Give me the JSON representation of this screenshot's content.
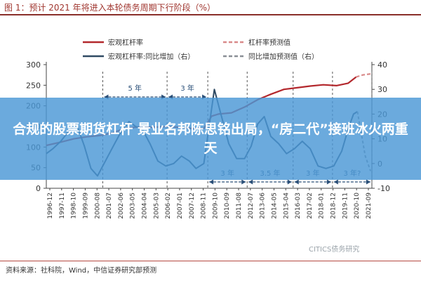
{
  "figure": {
    "title": "图 1：预计 2021 年将进入本轮债务周期下行阶段（%）",
    "source": "资料来源：社科院，Wind，中信证券研究部预测",
    "watermark": "CITICS债务研究"
  },
  "banner": {
    "headline": "合规的股票期货杠杆 景业名邦陈思铭出局，“房二代”接班冰火两重天"
  },
  "colors": {
    "leverage": "#b3282d",
    "yoy": "#2f4a63",
    "title": "#a0362f",
    "banner": "#4a97d6",
    "annotation": "#2a4f78"
  },
  "chart_data": {
    "type": "line",
    "x_ticks": [
      "1996-12",
      "1997-11",
      "1998-10",
      "1999-09",
      "2000-08",
      "2001-07",
      "2002-06",
      "2003-05",
      "2004-04",
      "2005-03",
      "2006-02",
      "2007-01",
      "2007-12",
      "2008-11",
      "2009-10",
      "2010-09",
      "2011-08",
      "2012-07",
      "2013-06",
      "2014-05",
      "2015-04",
      "2016-03",
      "2017-02",
      "2018-01",
      "2018-12",
      "2019-11",
      "2020-10",
      "2021-09"
    ],
    "y_left": {
      "ticks": [
        "300",
        "250",
        "200",
        "150",
        "100",
        "50",
        "0"
      ],
      "range": [
        0,
        300
      ]
    },
    "y_right": {
      "ticks": [
        "40",
        "30",
        "20",
        "10",
        "0",
        "-10"
      ],
      "range": [
        -10,
        40
      ]
    },
    "legend": [
      {
        "key": "leverage",
        "label": "宏观杠杆率",
        "style": "solid",
        "color": "#b3282d"
      },
      {
        "key": "leverage_forecast",
        "label": "杠杆率预测值",
        "style": "dashed",
        "color": "#d98a8a"
      },
      {
        "key": "yoy",
        "label": "宏观杠杆率:同比增加（右）",
        "style": "solid",
        "color": "#2f4a63"
      },
      {
        "key": "yoy_forecast",
        "label": "同比增加预测值（右）",
        "style": "dashed",
        "color": "#8a8f96"
      }
    ],
    "series": [
      {
        "name": "宏观杠杆率",
        "axis": "left",
        "x": [
          1996.9,
          1998,
          1999,
          2000,
          2001,
          2002,
          2003,
          2004,
          2005,
          2006,
          2007,
          2008,
          2008.9,
          2009.5,
          2010,
          2011,
          2012,
          2013,
          2014,
          2015,
          2016,
          2017,
          2018,
          2019,
          2019.9,
          2020.5
        ],
        "y": [
          104,
          112,
          120,
          125,
          128,
          135,
          146,
          149,
          148,
          150,
          148,
          145,
          145,
          175,
          180,
          183,
          197,
          215,
          228,
          240,
          244,
          248,
          251,
          249,
          255,
          270
        ]
      },
      {
        "name": "杠杆率预测值",
        "axis": "left",
        "x": [
          2020.5,
          2021,
          2021.7
        ],
        "y": [
          270,
          275,
          278
        ]
      },
      {
        "name": "宏观杠杆率:同比增加",
        "axis": "right",
        "x": [
          1996.9,
          1997.4,
          1998,
          1998.6,
          1999.2,
          1999.8,
          2000.3,
          2000.8,
          2001.3,
          2001.9,
          2002.5,
          2003.2,
          2003.7,
          2004.2,
          2004.8,
          2005.4,
          2006,
          2006.6,
          2007.2,
          2007.8,
          2008.3,
          2008.9,
          2009.3,
          2009.7,
          2010.2,
          2010.8,
          2011.4,
          2012,
          2012.5,
          2013,
          2013.5,
          2014,
          2014.6,
          2015.2,
          2015.8,
          2016.4,
          2017,
          2017.6,
          2018.2,
          2018.8,
          2019.4,
          2019.9,
          2020.3,
          2020.6
        ],
        "y": [
          4,
          6,
          9,
          13,
          16,
          7,
          -2,
          -5,
          0,
          6,
          12,
          17,
          15,
          14,
          8,
          1,
          -1,
          0,
          3,
          1,
          -2,
          0,
          15,
          30,
          20,
          8,
          2,
          2,
          7,
          16,
          19,
          11,
          8,
          4,
          6,
          9,
          6,
          -1,
          -2,
          -1,
          5,
          14,
          20,
          21
        ]
      },
      {
        "name": "同比增加预测值",
        "axis": "right",
        "x": [
          2020.6,
          2020.9,
          2021.2,
          2021.6
        ],
        "y": [
          21,
          12,
          3,
          -3
        ]
      }
    ],
    "phase_markers": [
      {
        "label": "5 年",
        "from": 2001.2,
        "to": 2006.1,
        "position": "upper"
      },
      {
        "label": "3 年",
        "from": 2006.1,
        "to": 2009.2,
        "position": "upper"
      },
      {
        "label": "3 年",
        "from": 2009.2,
        "to": 2012.2,
        "position": "lower"
      },
      {
        "label": "3.5 年",
        "from": 2012.2,
        "to": 2015.7,
        "position": "lower"
      },
      {
        "label": "3 年",
        "from": 2015.7,
        "to": 2018.7,
        "position": "lower"
      },
      {
        "label": "3 年?",
        "from": 2018.7,
        "to": 2021.7,
        "position": "lower"
      }
    ],
    "vertical_lines": [
      2001.2,
      2006.1,
      2009.2,
      2012.2,
      2015.7,
      2018.7,
      2021.7
    ]
  }
}
